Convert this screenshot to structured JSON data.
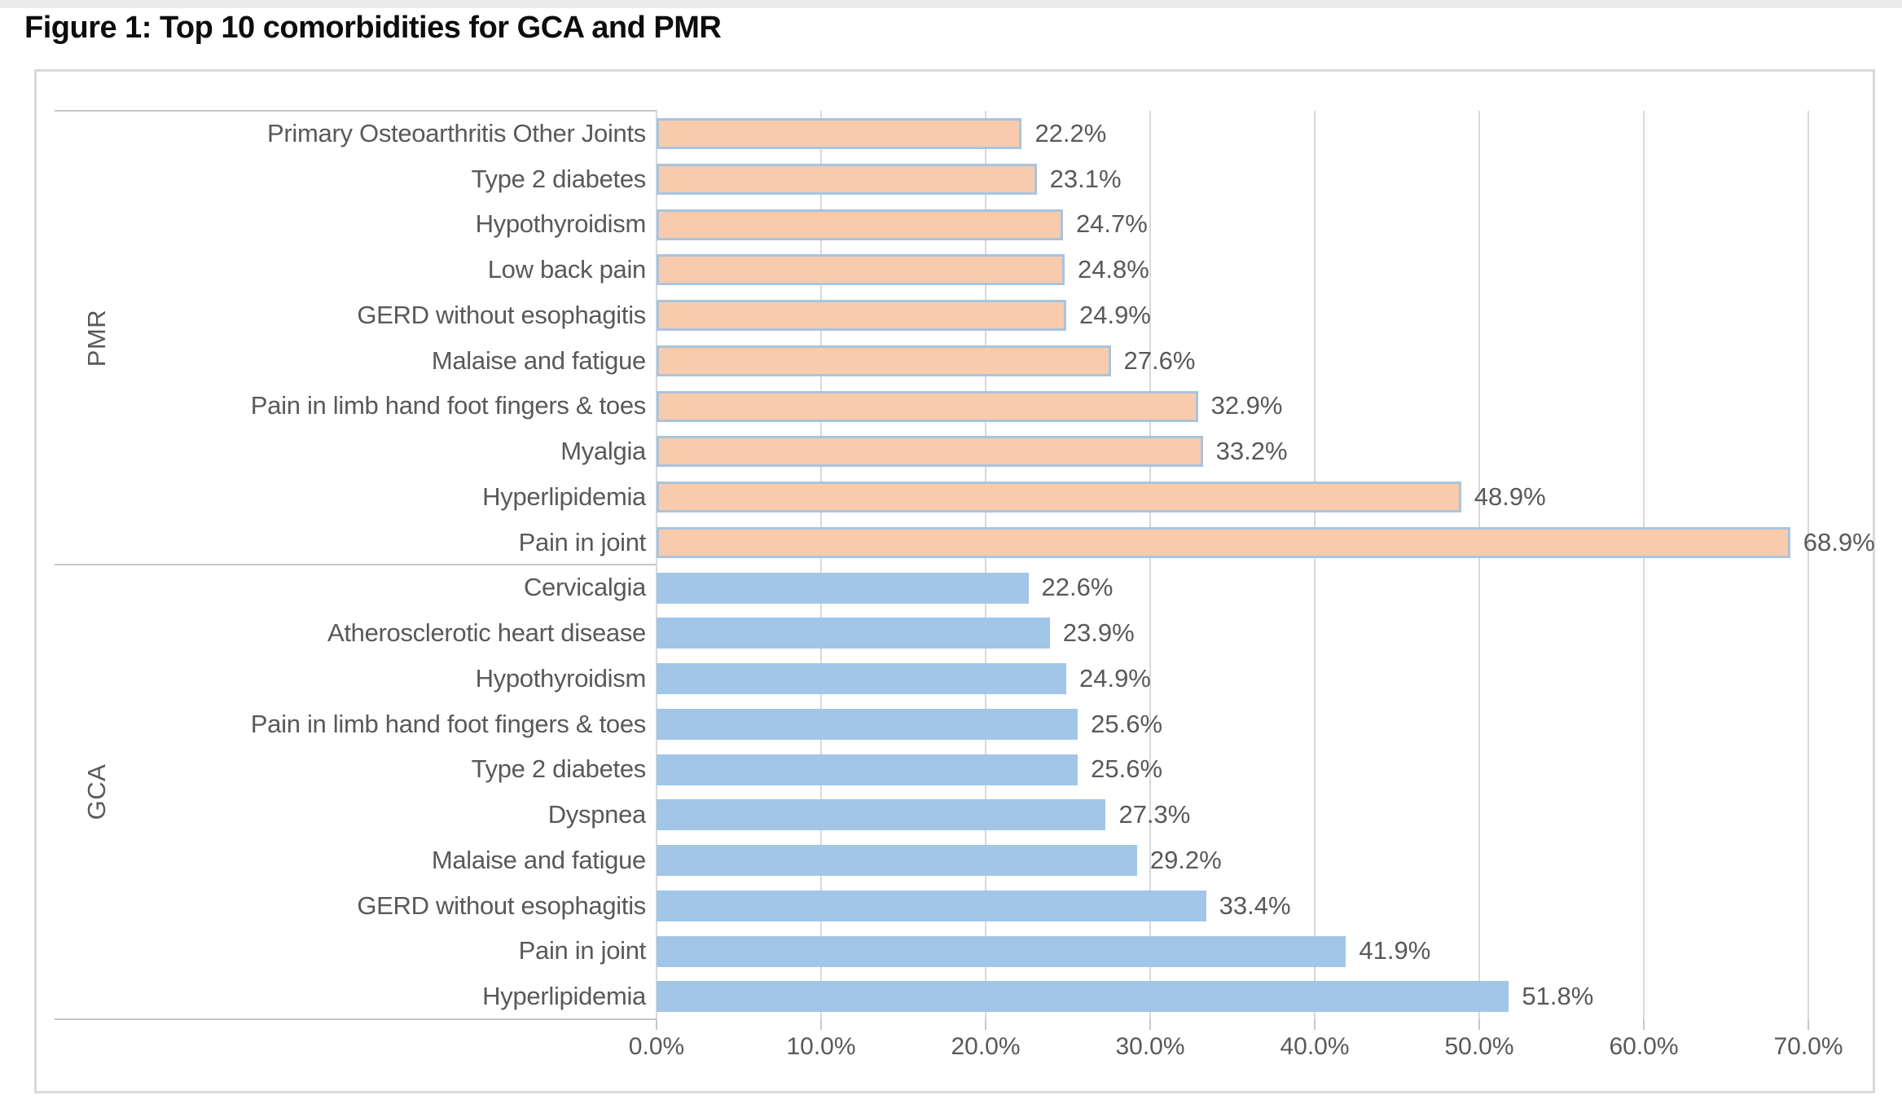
{
  "page": {
    "title": "Figure 1: Top 10 comorbidities for GCA and PMR"
  },
  "chart_data": {
    "type": "bar",
    "orientation": "horizontal",
    "title": "Figure 1: Top 10 comorbidities for GCA and PMR",
    "xlabel": "",
    "ylabel": "",
    "xlim": [
      0,
      70
    ],
    "grid": true,
    "value_unit": "%",
    "x_ticks": [
      {
        "pos": 0,
        "label": "0.0%"
      },
      {
        "pos": 10,
        "label": "10.0%"
      },
      {
        "pos": 20,
        "label": "20.0%"
      },
      {
        "pos": 30,
        "label": "30.0%"
      },
      {
        "pos": 40,
        "label": "40.0%"
      },
      {
        "pos": 50,
        "label": "50.0%"
      },
      {
        "pos": 60,
        "label": "60.0%"
      },
      {
        "pos": 70,
        "label": "70.0%"
      }
    ],
    "groups": [
      {
        "name": "PMR",
        "bar_fill": "#F8CBAD",
        "bar_border": "#A9C4DE",
        "items": [
          {
            "label": "Primary Osteoarthritis Other Joints",
            "value": 22.2,
            "display": "22.2%"
          },
          {
            "label": "Type 2 diabetes",
            "value": 23.1,
            "display": "23.1%"
          },
          {
            "label": "Hypothyroidism",
            "value": 24.7,
            "display": "24.7%"
          },
          {
            "label": "Low back pain",
            "value": 24.8,
            "display": "24.8%"
          },
          {
            "label": "GERD without esophagitis",
            "value": 24.9,
            "display": "24.9%"
          },
          {
            "label": "Malaise and fatigue",
            "value": 27.6,
            "display": "27.6%"
          },
          {
            "label": "Pain in limb hand foot fingers & toes",
            "value": 32.9,
            "display": "32.9%"
          },
          {
            "label": "Myalgia",
            "value": 33.2,
            "display": "33.2%"
          },
          {
            "label": "Hyperlipidemia",
            "value": 48.9,
            "display": "48.9%"
          },
          {
            "label": "Pain in joint",
            "value": 68.9,
            "display": "68.9%"
          }
        ]
      },
      {
        "name": "GCA",
        "bar_fill": "#A1C6E8",
        "bar_border": null,
        "items": [
          {
            "label": "Cervicalgia",
            "value": 22.6,
            "display": "22.6%"
          },
          {
            "label": "Atherosclerotic heart disease",
            "value": 23.9,
            "display": "23.9%"
          },
          {
            "label": "Hypothyroidism",
            "value": 24.9,
            "display": "24.9%"
          },
          {
            "label": "Pain in limb hand foot fingers & toes",
            "value": 25.6,
            "display": "25.6%"
          },
          {
            "label": "Type 2 diabetes",
            "value": 25.6,
            "display": "25.6%"
          },
          {
            "label": "Dyspnea",
            "value": 27.3,
            "display": "27.3%"
          },
          {
            "label": "Malaise and fatigue",
            "value": 29.2,
            "display": "29.2%"
          },
          {
            "label": "GERD without esophagitis",
            "value": 33.4,
            "display": "33.4%"
          },
          {
            "label": "Pain in joint",
            "value": 41.9,
            "display": "41.9%"
          },
          {
            "label": "Hyperlipidemia",
            "value": 51.8,
            "display": "51.8%"
          }
        ]
      }
    ],
    "colors": {
      "gridline": "#D9D9D9",
      "axis_boundary_line": "#C6C6C6",
      "label_text": "#595959",
      "title_text": "#0D0D0D",
      "card_border": "#D9D9D9"
    }
  }
}
